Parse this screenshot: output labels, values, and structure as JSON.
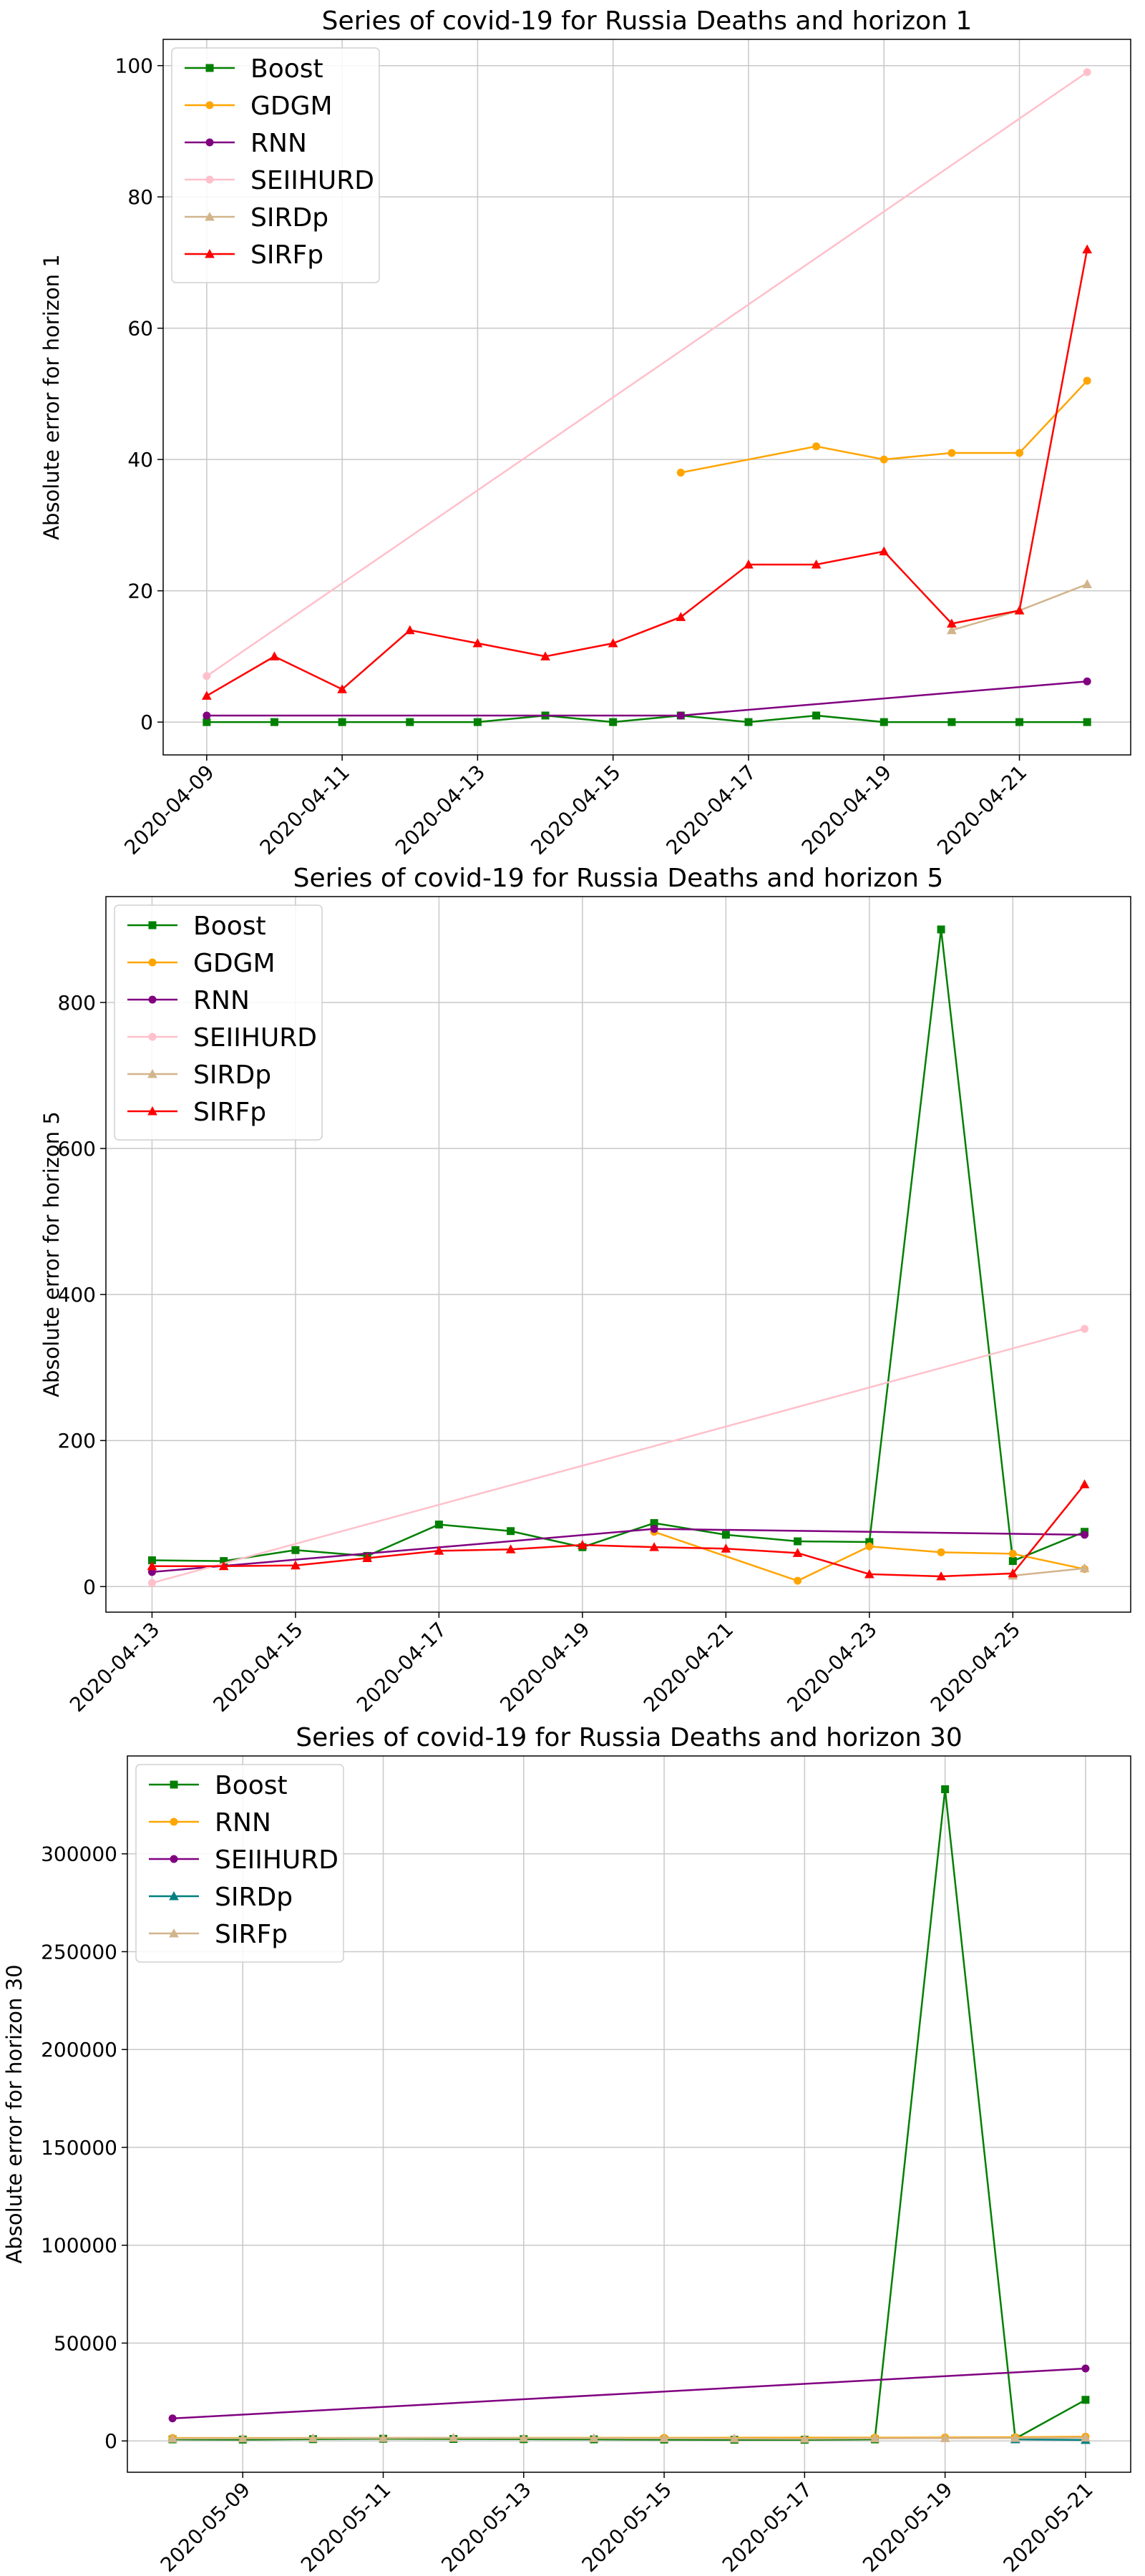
{
  "chart_data": [
    {
      "type": "line",
      "title": "Series of covid-19 for Russia Deaths and horizon 1",
      "xlabel": "",
      "ylabel": "Absolute error for horizon 1",
      "x": [
        "2020-04-09",
        "2020-04-10",
        "2020-04-11",
        "2020-04-12",
        "2020-04-13",
        "2020-04-14",
        "2020-04-15",
        "2020-04-16",
        "2020-04-17",
        "2020-04-18",
        "2020-04-19",
        "2020-04-20",
        "2020-04-21",
        "2020-04-22"
      ],
      "x_ticks": [
        "2020-04-09",
        "2020-04-11",
        "2020-04-13",
        "2020-04-15",
        "2020-04-17",
        "2020-04-19",
        "2020-04-21"
      ],
      "ylim": [
        -5,
        104
      ],
      "y_ticks": [
        0,
        20,
        40,
        60,
        80,
        100
      ],
      "grid": true,
      "legend_position": "top-left",
      "series": [
        {
          "name": "Boost",
          "color": "#008000",
          "marker": "square",
          "values": [
            0,
            0,
            0,
            0,
            0,
            1,
            0,
            1,
            0,
            1,
            0,
            0,
            0,
            0
          ]
        },
        {
          "name": "GDGM",
          "color": "#ffa500",
          "marker": "circle",
          "values": [
            null,
            null,
            null,
            null,
            null,
            null,
            null,
            38,
            null,
            42,
            40,
            41,
            41,
            52
          ]
        },
        {
          "name": "RNN",
          "color": "#800080",
          "marker": "circle",
          "values": [
            1,
            null,
            null,
            null,
            null,
            null,
            null,
            1,
            null,
            null,
            null,
            null,
            null,
            6.2
          ]
        },
        {
          "name": "SEIIHURD",
          "color": "#ffc0cb",
          "marker": "circle",
          "values": [
            7,
            null,
            null,
            null,
            null,
            null,
            null,
            null,
            null,
            null,
            null,
            null,
            null,
            99
          ]
        },
        {
          "name": "SIRDp",
          "color": "#d2b48c",
          "marker": "triangle",
          "values": [
            null,
            null,
            null,
            null,
            null,
            null,
            null,
            null,
            null,
            null,
            null,
            14,
            17,
            21
          ]
        },
        {
          "name": "SIRFp",
          "color": "#ff0000",
          "marker": "triangle",
          "values": [
            4,
            10,
            5,
            14,
            12,
            10,
            12,
            16,
            24,
            24,
            26,
            15,
            17,
            72
          ]
        }
      ]
    },
    {
      "type": "line",
      "title": "Series of covid-19 for Russia Deaths and horizon 5",
      "xlabel": "",
      "ylabel": "Absolute error for horizon 5",
      "x": [
        "2020-04-13",
        "2020-04-14",
        "2020-04-15",
        "2020-04-16",
        "2020-04-17",
        "2020-04-18",
        "2020-04-19",
        "2020-04-20",
        "2020-04-21",
        "2020-04-22",
        "2020-04-23",
        "2020-04-24",
        "2020-04-25",
        "2020-04-26"
      ],
      "x_ticks": [
        "2020-04-13",
        "2020-04-15",
        "2020-04-17",
        "2020-04-19",
        "2020-04-21",
        "2020-04-23",
        "2020-04-25"
      ],
      "ylim": [
        -35,
        945
      ],
      "y_ticks": [
        0,
        200,
        400,
        600,
        800
      ],
      "grid": true,
      "legend_position": "top-left",
      "series": [
        {
          "name": "Boost",
          "color": "#008000",
          "marker": "square",
          "values": [
            36,
            35,
            50,
            42,
            85,
            76,
            54,
            87,
            71,
            62,
            61,
            900,
            35,
            75
          ]
        },
        {
          "name": "GDGM",
          "color": "#ffa500",
          "marker": "circle",
          "values": [
            null,
            null,
            null,
            null,
            null,
            null,
            null,
            75,
            null,
            8,
            55,
            47,
            45,
            24
          ]
        },
        {
          "name": "RNN",
          "color": "#800080",
          "marker": "circle",
          "values": [
            20,
            null,
            null,
            null,
            null,
            null,
            null,
            79,
            null,
            null,
            null,
            null,
            null,
            71
          ]
        },
        {
          "name": "SEIIHURD",
          "color": "#ffc0cb",
          "marker": "circle",
          "values": [
            5,
            null,
            null,
            null,
            null,
            null,
            null,
            null,
            null,
            null,
            null,
            null,
            null,
            353
          ]
        },
        {
          "name": "SIRDp",
          "color": "#d2b48c",
          "marker": "triangle",
          "values": [
            null,
            null,
            null,
            null,
            null,
            null,
            null,
            null,
            null,
            null,
            null,
            null,
            15,
            25
          ]
        },
        {
          "name": "SIRFp",
          "color": "#ff0000",
          "marker": "triangle",
          "values": [
            28,
            28,
            29,
            39,
            49,
            51,
            57,
            54,
            52,
            46,
            17,
            14,
            18,
            140
          ]
        }
      ]
    },
    {
      "type": "line",
      "title": "Series of covid-19 for Russia Deaths and horizon 30",
      "xlabel": "",
      "ylabel": "Absolute error for horizon 30",
      "x": [
        "2020-05-08",
        "2020-05-09",
        "2020-05-10",
        "2020-05-11",
        "2020-05-12",
        "2020-05-13",
        "2020-05-14",
        "2020-05-15",
        "2020-05-16",
        "2020-05-17",
        "2020-05-18",
        "2020-05-19",
        "2020-05-20",
        "2020-05-21"
      ],
      "x_ticks": [
        "2020-05-09",
        "2020-05-11",
        "2020-05-13",
        "2020-05-15",
        "2020-05-17",
        "2020-05-19",
        "2020-05-21"
      ],
      "ylim": [
        -16000,
        350000
      ],
      "y_ticks": [
        0,
        50000,
        100000,
        150000,
        200000,
        250000,
        300000
      ],
      "grid": true,
      "legend_position": "top-left",
      "series": [
        {
          "name": "Boost",
          "color": "#008000",
          "marker": "square",
          "values": [
            800,
            700,
            900,
            1100,
            1000,
            900,
            800,
            700,
            600,
            600,
            800,
            333000,
            1200,
            21000
          ]
        },
        {
          "name": "RNN",
          "color": "#ffa500",
          "marker": "circle",
          "values": [
            1500,
            null,
            null,
            null,
            null,
            null,
            null,
            1600,
            null,
            null,
            1700,
            1800,
            1900,
            2200
          ]
        },
        {
          "name": "SEIIHURD",
          "color": "#800080",
          "marker": "circle",
          "values": [
            11500,
            null,
            null,
            null,
            null,
            null,
            null,
            null,
            null,
            null,
            null,
            null,
            null,
            37000
          ]
        },
        {
          "name": "SIRDp",
          "color": "#008080",
          "marker": "triangle",
          "values": [
            null,
            null,
            null,
            null,
            null,
            null,
            null,
            null,
            null,
            null,
            null,
            null,
            800,
            500
          ]
        },
        {
          "name": "SIRFp",
          "color": "#d2b48c",
          "marker": "triangle",
          "values": [
            1200,
            1300,
            1400,
            1500,
            1600,
            1500,
            1400,
            1300,
            1200,
            1100,
            1300,
            1400,
            1500,
            1700
          ]
        }
      ]
    }
  ]
}
